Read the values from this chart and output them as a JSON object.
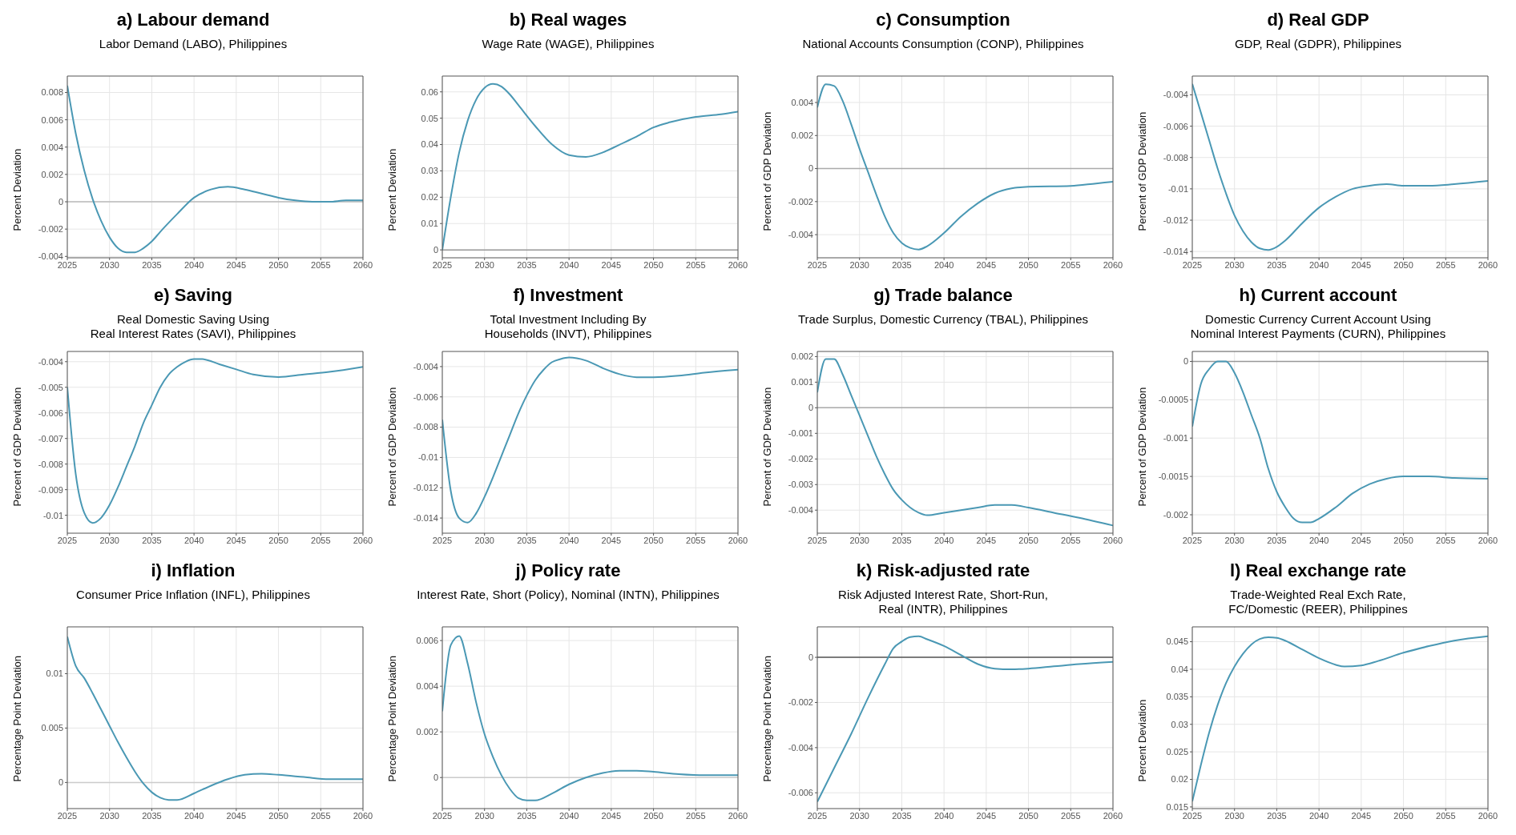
{
  "chart_data": [
    {
      "type": "line",
      "title": "a)  Labour demand",
      "subtitle": "Labor Demand (LABO), Philippines",
      "ylabel": "Percent Deviation",
      "x": [
        2025,
        2026,
        2027,
        2028,
        2029,
        2030,
        2031,
        2032,
        2033,
        2034,
        2035,
        2036,
        2038,
        2040,
        2042,
        2044,
        2046,
        2048,
        2050,
        2052,
        2054,
        2056,
        2058,
        2060
      ],
      "series": [
        {
          "color": "#4a98b4",
          "values": [
            0.0085,
            0.005,
            0.0023,
            0.0002,
            -0.0014,
            -0.0026,
            -0.0034,
            -0.0037,
            -0.0037,
            -0.0034,
            -0.0029,
            -0.0022,
            -0.0009,
            0.0003,
            0.0009,
            0.0011,
            0.0009,
            0.0006,
            0.0003,
            0.0001,
            0,
            0,
            0.0001,
            0.0001
          ]
        }
      ],
      "xlim": [
        2025,
        2060
      ],
      "ylim": [
        -0.0041,
        0.0092
      ],
      "xticks": [
        2025,
        2030,
        2035,
        2040,
        2045,
        2050,
        2055,
        2060
      ],
      "yticks": [
        -0.004,
        -0.002,
        0,
        0.002,
        0.004,
        0.006,
        0.008
      ],
      "grid": true,
      "ref_lines": [
        {
          "axis": "y",
          "value": 0,
          "color": "#bbbbbb"
        }
      ]
    },
    {
      "type": "line",
      "title": "b)  Real wages",
      "subtitle": "Wage Rate (WAGE), Philippines",
      "ylabel": "Percent Deviation",
      "x": [
        2025,
        2026,
        2027,
        2028,
        2029,
        2030,
        2031,
        2032,
        2033,
        2034,
        2036,
        2038,
        2040,
        2042,
        2044,
        2046,
        2048,
        2050,
        2052,
        2055,
        2058,
        2060
      ],
      "series": [
        {
          "color": "#4a98b4",
          "values": [
            0,
            0.02,
            0.037,
            0.049,
            0.057,
            0.0615,
            0.063,
            0.062,
            0.059,
            0.055,
            0.047,
            0.04,
            0.036,
            0.0353,
            0.037,
            0.04,
            0.043,
            0.0465,
            0.0485,
            0.0505,
            0.0515,
            0.0525
          ]
        }
      ],
      "xlim": [
        2025,
        2060
      ],
      "ylim": [
        -0.003,
        0.066
      ],
      "xticks": [
        2025,
        2030,
        2035,
        2040,
        2045,
        2050,
        2055,
        2060
      ],
      "yticks": [
        0,
        0.01,
        0.02,
        0.03,
        0.04,
        0.05,
        0.06
      ],
      "grid": true,
      "ref_lines": [
        {
          "axis": "y",
          "value": 0,
          "color": "#999999"
        }
      ]
    },
    {
      "type": "line",
      "title": "c)  Consumption",
      "subtitle": "National Accounts Consumption (CONP), Philippines",
      "ylabel": "Percent of GDP Deviation",
      "x": [
        2025,
        2026,
        2027,
        2028,
        2029,
        2030,
        2031,
        2032,
        2033,
        2034,
        2035,
        2036,
        2037,
        2038,
        2040,
        2042,
        2044,
        2046,
        2048,
        2050,
        2055,
        2058,
        2060
      ],
      "series": [
        {
          "color": "#4a98b4",
          "values": [
            0.0037,
            0.0051,
            0.005,
            0.0041,
            0.0027,
            0.0012,
            -0.0002,
            -0.0016,
            -0.0029,
            -0.0039,
            -0.0045,
            -0.0048,
            -0.0049,
            -0.0047,
            -0.0039,
            -0.0029,
            -0.0021,
            -0.0015,
            -0.0012,
            -0.0011,
            -0.00105,
            -0.0009,
            -0.0008
          ]
        }
      ],
      "xlim": [
        2025,
        2060
      ],
      "ylim": [
        -0.0054,
        0.0056
      ],
      "xticks": [
        2025,
        2030,
        2035,
        2040,
        2045,
        2050,
        2055,
        2060
      ],
      "yticks": [
        -0.004,
        -0.002,
        0,
        0.002,
        0.004
      ],
      "grid": true,
      "ref_lines": [
        {
          "axis": "y",
          "value": 0,
          "color": "#aaaaaa"
        }
      ]
    },
    {
      "type": "line",
      "title": "d)  Real GDP",
      "subtitle": "GDP, Real (GDPR), Philippines",
      "ylabel": "Percent of GDP Deviation",
      "x": [
        2025,
        2026,
        2027,
        2028,
        2029,
        2030,
        2031,
        2032,
        2033,
        2034,
        2035,
        2036,
        2038,
        2040,
        2042,
        2044,
        2046,
        2048,
        2050,
        2053,
        2056,
        2060
      ],
      "series": [
        {
          "color": "#4a98b4",
          "values": [
            -0.0033,
            -0.0051,
            -0.0069,
            -0.0087,
            -0.0103,
            -0.0117,
            -0.0127,
            -0.0134,
            -0.0138,
            -0.0139,
            -0.0137,
            -0.0133,
            -0.0122,
            -0.0112,
            -0.0105,
            -0.01,
            -0.0098,
            -0.0097,
            -0.0098,
            -0.0098,
            -0.0097,
            -0.0095
          ]
        }
      ],
      "xlim": [
        2025,
        2060
      ],
      "ylim": [
        -0.0144,
        -0.0028
      ],
      "xticks": [
        2025,
        2030,
        2035,
        2040,
        2045,
        2050,
        2055,
        2060
      ],
      "yticks": [
        -0.014,
        -0.012,
        -0.01,
        -0.008,
        -0.006,
        -0.004
      ],
      "grid": true
    },
    {
      "type": "line",
      "title": "e)  Saving",
      "subtitle": "Real Domestic Saving Using\nReal Interest Rates (SAVI), Philippines",
      "ylabel": "Percent of GDP Deviation",
      "x": [
        2025,
        2026,
        2027,
        2028,
        2029,
        2030,
        2031,
        2032,
        2033,
        2034,
        2035,
        2036,
        2037,
        2038,
        2039,
        2040,
        2041,
        2043,
        2045,
        2047,
        2050,
        2053,
        2056,
        2060
      ],
      "series": [
        {
          "color": "#4a98b4",
          "values": [
            -0.005,
            -0.0084,
            -0.0099,
            -0.0103,
            -0.0101,
            -0.0096,
            -0.0089,
            -0.0081,
            -0.0073,
            -0.0064,
            -0.0057,
            -0.005,
            -0.0045,
            -0.0042,
            -0.004,
            -0.0039,
            -0.0039,
            -0.0041,
            -0.0043,
            -0.0045,
            -0.0046,
            -0.0045,
            -0.0044,
            -0.0042
          ]
        }
      ],
      "xlim": [
        2025,
        2060
      ],
      "ylim": [
        -0.0107,
        -0.0036
      ],
      "xticks": [
        2025,
        2030,
        2035,
        2040,
        2045,
        2050,
        2055,
        2060
      ],
      "yticks": [
        -0.01,
        -0.009,
        -0.008,
        -0.007,
        -0.006,
        -0.005,
        -0.004
      ],
      "grid": true
    },
    {
      "type": "line",
      "title": "f)  Investment",
      "subtitle": "Total Investment Including By\nHouseholds (INVT), Philippines",
      "ylabel": "Percent of GDP Deviation",
      "x": [
        2025,
        2026,
        2027,
        2028,
        2029,
        2030,
        2031,
        2032,
        2033,
        2034,
        2035,
        2036,
        2037,
        2038,
        2039,
        2040,
        2042,
        2044,
        2046,
        2048,
        2050,
        2053,
        2056,
        2060
      ],
      "series": [
        {
          "color": "#4a98b4",
          "values": [
            -0.0075,
            -0.0122,
            -0.014,
            -0.0143,
            -0.0137,
            -0.0126,
            -0.0113,
            -0.0099,
            -0.0085,
            -0.0071,
            -0.0059,
            -0.0049,
            -0.0042,
            -0.0037,
            -0.0035,
            -0.0034,
            -0.0036,
            -0.0041,
            -0.0045,
            -0.0047,
            -0.0047,
            -0.0046,
            -0.0044,
            -0.0042
          ]
        }
      ],
      "xlim": [
        2025,
        2060
      ],
      "ylim": [
        -0.015,
        -0.003
      ],
      "xticks": [
        2025,
        2030,
        2035,
        2040,
        2045,
        2050,
        2055,
        2060
      ],
      "yticks": [
        -0.014,
        -0.012,
        -0.01,
        -0.008,
        -0.006,
        -0.004
      ],
      "grid": true
    },
    {
      "type": "line",
      "title": "g)  Trade balance",
      "subtitle": "Trade Surplus, Domestic Currency (TBAL), Philippines",
      "ylabel": "Percent of GDP Deviation",
      "x": [
        2025,
        2026,
        2027,
        2028,
        2029,
        2030,
        2031,
        2032,
        2033,
        2034,
        2035,
        2036,
        2037,
        2038,
        2040,
        2042,
        2044,
        2046,
        2048,
        2050,
        2053,
        2056,
        2060
      ],
      "series": [
        {
          "color": "#4a98b4",
          "values": [
            0.0006,
            0.0019,
            0.0019,
            0.0013,
            0.0005,
            -0.0003,
            -0.0011,
            -0.0019,
            -0.0026,
            -0.0032,
            -0.0036,
            -0.0039,
            -0.0041,
            -0.0042,
            -0.0041,
            -0.004,
            -0.0039,
            -0.0038,
            -0.0038,
            -0.0039,
            -0.0041,
            -0.0043,
            -0.0046
          ]
        }
      ],
      "xlim": [
        2025,
        2060
      ],
      "ylim": [
        -0.0049,
        0.0022
      ],
      "xticks": [
        2025,
        2030,
        2035,
        2040,
        2045,
        2050,
        2055,
        2060
      ],
      "yticks": [
        -0.004,
        -0.003,
        -0.002,
        -0.001,
        0,
        0.001,
        0.002
      ],
      "grid": true,
      "ref_lines": [
        {
          "axis": "y",
          "value": 0,
          "color": "#aaaaaa"
        }
      ]
    },
    {
      "type": "line",
      "title": "h)  Current account",
      "subtitle": "Domestic Currency Current Account Using\nNominal Interest Payments (CURN), Philippines",
      "ylabel": "Percent of GDP Deviation",
      "x": [
        2025,
        2026,
        2027,
        2028,
        2029,
        2030,
        2031,
        2032,
        2033,
        2034,
        2035,
        2036,
        2037,
        2038,
        2039,
        2040,
        2042,
        2044,
        2046,
        2048,
        2050,
        2053,
        2056,
        2060
      ],
      "series": [
        {
          "color": "#4a98b4",
          "values": [
            -0.00085,
            -0.0003,
            -0.0001,
            0,
            0,
            -0.00015,
            -0.0004,
            -0.0007,
            -0.001,
            -0.0014,
            -0.0017,
            -0.0019,
            -0.00205,
            -0.0021,
            -0.0021,
            -0.00205,
            -0.0019,
            -0.00172,
            -0.0016,
            -0.00153,
            -0.0015,
            -0.0015,
            -0.00152,
            -0.00153
          ]
        }
      ],
      "xlim": [
        2025,
        2060
      ],
      "ylim": [
        -0.00224,
        0.00013
      ],
      "xticks": [
        2025,
        2030,
        2035,
        2040,
        2045,
        2050,
        2055,
        2060
      ],
      "yticks": [
        -0.002,
        -0.0015,
        -0.001,
        -0.0005,
        0
      ],
      "grid": true,
      "ref_lines": [
        {
          "axis": "y",
          "value": 0,
          "color": "#999999"
        }
      ]
    },
    {
      "type": "line",
      "title": "i)  Inflation",
      "subtitle": "Consumer Price Inflation (INFL), Philippines",
      "ylabel": "Percentage Point Deviation",
      "x": [
        2025,
        2026,
        2027,
        2028,
        2029,
        2030,
        2031,
        2032,
        2033,
        2034,
        2035,
        2036,
        2037,
        2038,
        2040,
        2042,
        2044,
        2046,
        2048,
        2050,
        2053,
        2056,
        2060
      ],
      "series": [
        {
          "color": "#4a98b4",
          "values": [
            0.0134,
            0.0107,
            0.0096,
            0.0082,
            0.0067,
            0.0052,
            0.0037,
            0.0023,
            0.001,
            -0.0001,
            -0.0009,
            -0.0014,
            -0.0016,
            -0.0016,
            -0.001,
            -0.0003,
            0.0003,
            0.0007,
            0.0008,
            0.0007,
            0.0005,
            0.0003,
            0.0003
          ]
        }
      ],
      "xlim": [
        2025,
        2060
      ],
      "ylim": [
        -0.0024,
        0.0143
      ],
      "xticks": [
        2025,
        2030,
        2035,
        2040,
        2045,
        2050,
        2055,
        2060
      ],
      "yticks": [
        0,
        0.005,
        0.01
      ],
      "grid": true,
      "ref_lines": [
        {
          "axis": "y",
          "value": 0,
          "color": "#cccccc"
        }
      ]
    },
    {
      "type": "line",
      "title": "j)  Policy rate",
      "subtitle": "Interest Rate, Short (Policy), Nominal (INTN), Philippines",
      "ylabel": "Percentage Point Deviation",
      "x": [
        2025,
        2026,
        2027,
        2028,
        2029,
        2030,
        2031,
        2032,
        2033,
        2034,
        2035,
        2036,
        2038,
        2040,
        2042,
        2044,
        2046,
        2048,
        2050,
        2053,
        2056,
        2060
      ],
      "series": [
        {
          "color": "#4a98b4",
          "values": [
            0.0029,
            0.0058,
            0.0062,
            0.005,
            0.0033,
            0.0019,
            0.0009,
            0.0001,
            -0.0005,
            -0.0009,
            -0.001,
            -0.001,
            -0.0007,
            -0.0003,
            0,
            0.0002,
            0.0003,
            0.0003,
            0.00025,
            0.00015,
            0.0001,
            0.0001
          ]
        }
      ],
      "xlim": [
        2025,
        2060
      ],
      "ylim": [
        -0.00136,
        0.0066
      ],
      "xticks": [
        2025,
        2030,
        2035,
        2040,
        2045,
        2050,
        2055,
        2060
      ],
      "yticks": [
        0,
        0.002,
        0.004,
        0.006
      ],
      "grid": true,
      "ref_lines": [
        {
          "axis": "y",
          "value": 0,
          "color": "#cccccc"
        }
      ]
    },
    {
      "type": "line",
      "title": "k)  Risk-adjusted rate",
      "subtitle": "Risk Adjusted Interest Rate, Short-Run,\nReal (INTR), Philippines",
      "ylabel": "Percentage Point Deviation",
      "x": [
        2025,
        2027,
        2029,
        2031,
        2033,
        2034,
        2035,
        2036,
        2037,
        2038,
        2040,
        2042,
        2044,
        2046,
        2048,
        2050,
        2053,
        2056,
        2060
      ],
      "series": [
        {
          "color": "#4a98b4",
          "values": [
            -0.0064,
            -0.0049,
            -0.0034,
            -0.0018,
            -0.0003,
            0.0004,
            0.0007,
            0.0009,
            0.00093,
            0.0008,
            0.0005,
            0.0001,
            -0.0003,
            -0.0005,
            -0.00053,
            -0.0005,
            -0.0004,
            -0.0003,
            -0.0002
          ]
        }
      ],
      "xlim": [
        2025,
        2060
      ],
      "ylim": [
        -0.0067,
        0.00135
      ],
      "xticks": [
        2025,
        2030,
        2035,
        2040,
        2045,
        2050,
        2055,
        2060
      ],
      "yticks": [
        -0.006,
        -0.004,
        -0.002,
        0
      ],
      "grid": true,
      "ref_lines": [
        {
          "axis": "y",
          "value": 0,
          "color": "#555555"
        }
      ]
    },
    {
      "type": "line",
      "title": "l)  Real exchange rate",
      "subtitle": "Trade-Weighted Real Exch Rate,\nFC/Domestic (REER), Philippines",
      "ylabel": "Percent Deviation",
      "x": [
        2025,
        2026,
        2027,
        2028,
        2029,
        2030,
        2031,
        2032,
        2033,
        2034,
        2035,
        2036,
        2038,
        2040,
        2042,
        2043,
        2045,
        2047,
        2050,
        2053,
        2056,
        2060
      ],
      "series": [
        {
          "color": "#4a98b4",
          "values": [
            0.016,
            0.0225,
            0.0285,
            0.0335,
            0.0375,
            0.0405,
            0.0428,
            0.0445,
            0.0455,
            0.0458,
            0.0457,
            0.0452,
            0.0436,
            0.042,
            0.0408,
            0.0405,
            0.0407,
            0.0415,
            0.043,
            0.0442,
            0.0452,
            0.046
          ]
        }
      ],
      "xlim": [
        2025,
        2060
      ],
      "ylim": [
        0.0147,
        0.0477
      ],
      "xticks": [
        2025,
        2030,
        2035,
        2040,
        2045,
        2050,
        2055,
        2060
      ],
      "yticks": [
        0.015,
        0.02,
        0.025,
        0.03,
        0.035,
        0.04,
        0.045
      ],
      "grid": true
    }
  ]
}
